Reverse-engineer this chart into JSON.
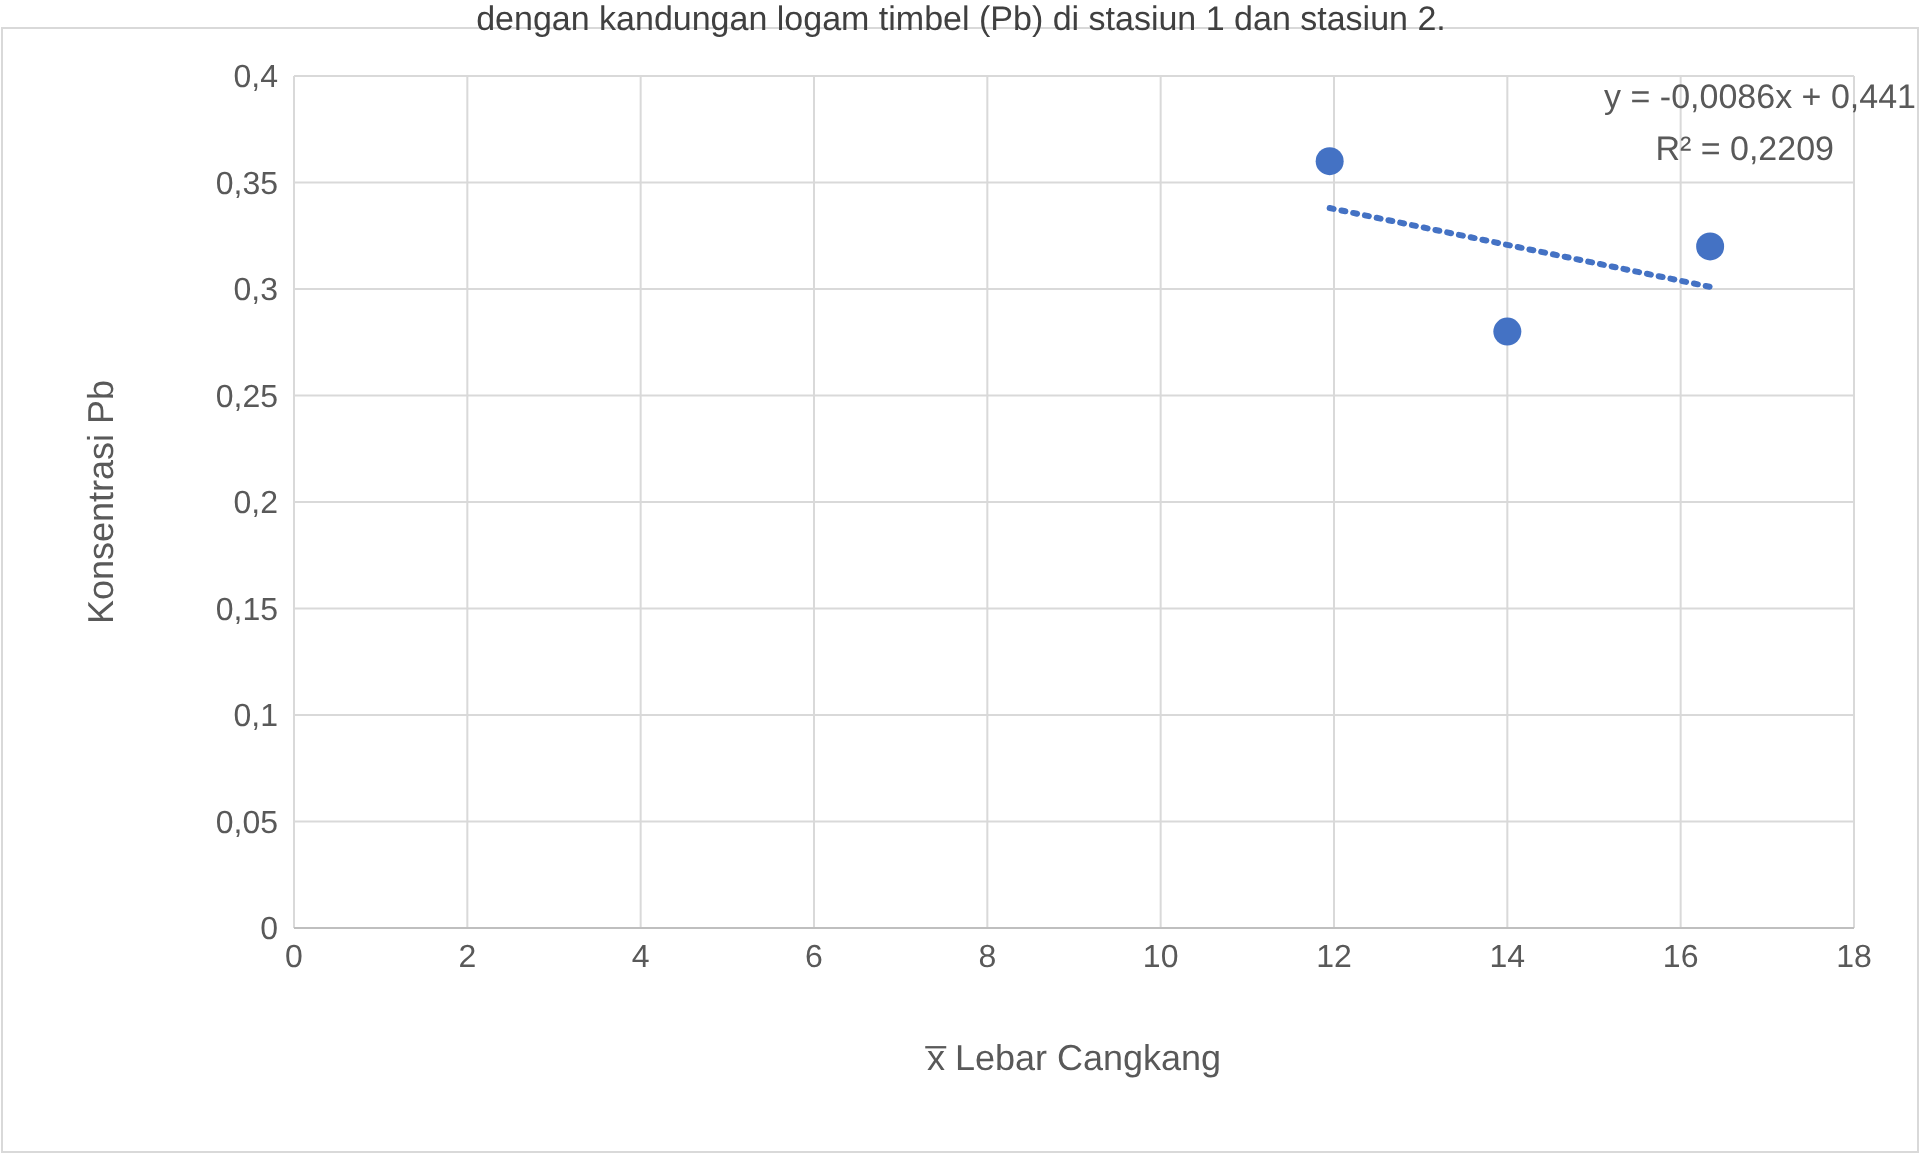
{
  "chart_data": {
    "type": "scatter",
    "title": "dengan kandungan logam timbel (Pb) di stasiun 1 dan stasiun 2.",
    "xlabel": "x̅ Lebar Cangkang",
    "ylabel": "Konsentrasi Pb",
    "x": [
      11.95,
      14.0,
      16.34
    ],
    "series": [
      {
        "color": "#4472c4",
        "values": [
          0.36,
          0.28,
          0.32
        ],
        "marker": "circle"
      },
      {
        "type": "line",
        "color": "#4472c4",
        "x": [
          11.95,
          16.34
        ],
        "values": [
          0.338,
          0.301
        ],
        "line_style": "dotted",
        "marker": "none"
      }
    ],
    "annotations": [
      {
        "text": "y = -0,0086x + 0,441"
      },
      {
        "text": "R² = 0,2209"
      }
    ],
    "xlim": [
      0,
      18
    ],
    "xticks": [
      0,
      2,
      4,
      6,
      8,
      10,
      12,
      14,
      16,
      18
    ],
    "ylim": [
      0,
      0.4
    ],
    "yticks": [
      0,
      {
        "value": 0.05,
        "label": "0,05"
      },
      {
        "value": 0.1,
        "label": "0,1"
      },
      {
        "value": 0.15,
        "label": "0,15"
      },
      {
        "value": 0.2,
        "label": "0,2"
      },
      {
        "value": 0.25,
        "label": "0,25"
      },
      {
        "value": 0.3,
        "label": "0,3"
      },
      {
        "value": 0.35,
        "label": "0,35"
      },
      {
        "value": 0.4,
        "label": "0,4"
      }
    ],
    "grid": true
  }
}
